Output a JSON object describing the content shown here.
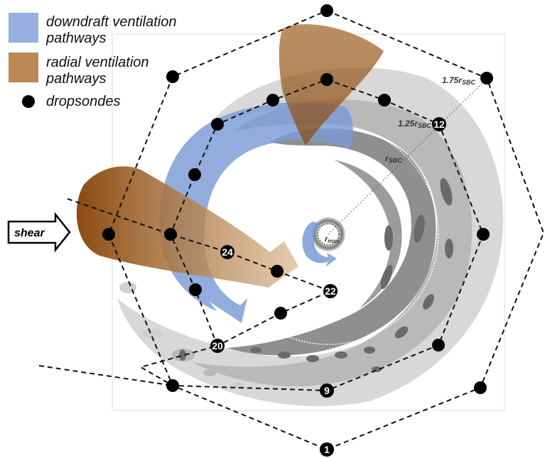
{
  "legend": {
    "downdraft_label": "downdraft ventilation pathways",
    "radial_label": "radial ventilation pathways",
    "dropsondes_label": "dropsondes",
    "downdraft_color": "#7a9bd6",
    "radial_color": "#a86a2a"
  },
  "shear_label": "shear",
  "radii": {
    "r175": "1.75r",
    "r125": "1.25r",
    "rsbc": "r",
    "sub": "SBC",
    "rmax": "r",
    "rmax_sub": "max"
  },
  "sonde_numbers": [
    "1",
    "9",
    "12",
    "20",
    "22",
    "24"
  ]
}
